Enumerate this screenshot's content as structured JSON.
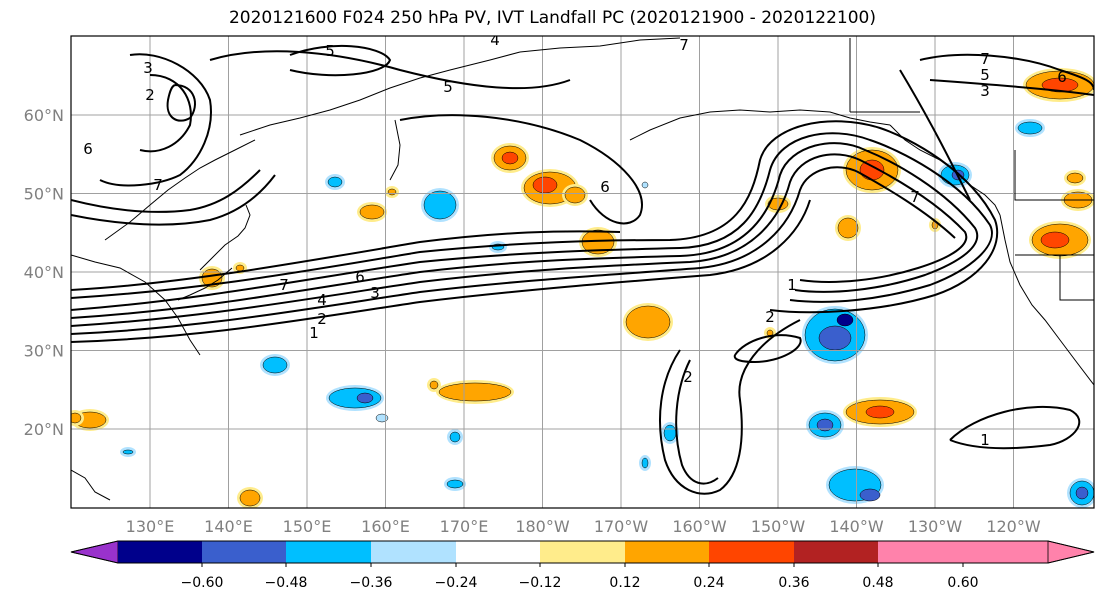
{
  "title": "2020121600 F024 250 hPa PV, IVT Landfall PC (2020121900 - 2020122100)",
  "lon_labels": [
    "130°E",
    "140°E",
    "150°E",
    "160°E",
    "170°E",
    "180°W",
    "170°W",
    "160°W",
    "150°W",
    "140°W",
    "130°W",
    "120°W"
  ],
  "lat_labels": [
    "60°N",
    "50°N",
    "40°N",
    "30°N",
    "20°N"
  ],
  "colorbar": {
    "tick_labels": [
      "−0.60",
      "−0.48",
      "−0.36",
      "−0.24",
      "−0.12",
      "0.12",
      "0.24",
      "0.36",
      "0.48",
      "0.60"
    ],
    "colors": [
      "#9932cc",
      "#00008b",
      "#3a5fcd",
      "#00bfff",
      "#b0e2ff",
      "#ffffff",
      "#ffec8b",
      "#ffa500",
      "#ff4500",
      "#b22222",
      "#ff82ab"
    ]
  },
  "contour_labels": [
    "1",
    "2",
    "3",
    "4",
    "5",
    "6",
    "7"
  ],
  "palette": {
    "grid": "#a0a0a0",
    "coast": "#000000",
    "contour": "#000000",
    "axis_text": "#808080"
  }
}
